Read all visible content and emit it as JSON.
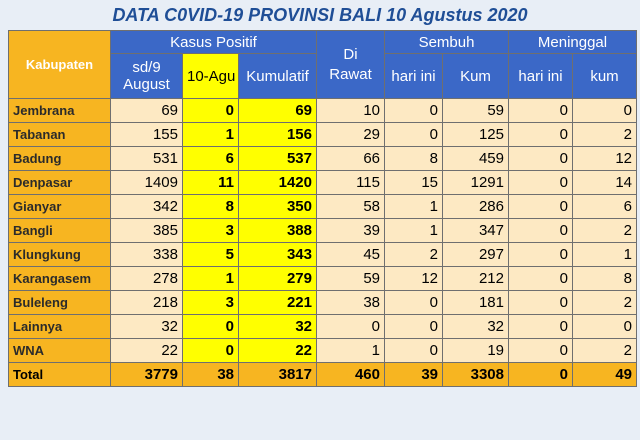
{
  "title": "DATA C0VID-19 PROVINSI BALI 10 Agustus 2020",
  "headers": {
    "kabupaten": "Kabupaten",
    "kasus_positif": "Kasus Positif",
    "di_rawat": "Di Rawat",
    "sembuh": "Sembuh",
    "meninggal": "Meninggal",
    "sd9_line1": "sd/9",
    "sd9_line2": "August",
    "agu10": "10-Agu",
    "kumulatif": "Kumulatif",
    "sembuh_hari_ini": "hari ini",
    "sembuh_kum": "Kum",
    "meninggal_hari_ini": "hari ini",
    "meninggal_kum": "kum"
  },
  "rows": [
    {
      "name": "Jembrana",
      "sd9": "69",
      "agu10": "0",
      "kumulatif": "69",
      "dirawat": "10",
      "sembuh_hari": "0",
      "sembuh_kum": "59",
      "mgl_hari": "0",
      "mgl_kum": "0"
    },
    {
      "name": "Tabanan",
      "sd9": "155",
      "agu10": "1",
      "kumulatif": "156",
      "dirawat": "29",
      "sembuh_hari": "0",
      "sembuh_kum": "125",
      "mgl_hari": "0",
      "mgl_kum": "2"
    },
    {
      "name": "Badung",
      "sd9": "531",
      "agu10": "6",
      "kumulatif": "537",
      "dirawat": "66",
      "sembuh_hari": "8",
      "sembuh_kum": "459",
      "mgl_hari": "0",
      "mgl_kum": "12"
    },
    {
      "name": "Denpasar",
      "sd9": "1409",
      "agu10": "11",
      "kumulatif": "1420",
      "dirawat": "115",
      "sembuh_hari": "15",
      "sembuh_kum": "1291",
      "mgl_hari": "0",
      "mgl_kum": "14"
    },
    {
      "name": "Gianyar",
      "sd9": "342",
      "agu10": "8",
      "kumulatif": "350",
      "dirawat": "58",
      "sembuh_hari": "1",
      "sembuh_kum": "286",
      "mgl_hari": "0",
      "mgl_kum": "6"
    },
    {
      "name": "Bangli",
      "sd9": "385",
      "agu10": "3",
      "kumulatif": "388",
      "dirawat": "39",
      "sembuh_hari": "1",
      "sembuh_kum": "347",
      "mgl_hari": "0",
      "mgl_kum": "2"
    },
    {
      "name": "Klungkung",
      "sd9": "338",
      "agu10": "5",
      "kumulatif": "343",
      "dirawat": "45",
      "sembuh_hari": "2",
      "sembuh_kum": "297",
      "mgl_hari": "0",
      "mgl_kum": "1"
    },
    {
      "name": "Karangasem",
      "sd9": "278",
      "agu10": "1",
      "kumulatif": "279",
      "dirawat": "59",
      "sembuh_hari": "12",
      "sembuh_kum": "212",
      "mgl_hari": "0",
      "mgl_kum": "8"
    },
    {
      "name": "Buleleng",
      "sd9": "218",
      "agu10": "3",
      "kumulatif": "221",
      "dirawat": "38",
      "sembuh_hari": "0",
      "sembuh_kum": "181",
      "mgl_hari": "0",
      "mgl_kum": "2"
    },
    {
      "name": "Lainnya",
      "sd9": "32",
      "agu10": "0",
      "kumulatif": "32",
      "dirawat": "0",
      "sembuh_hari": "0",
      "sembuh_kum": "32",
      "mgl_hari": "0",
      "mgl_kum": "0"
    },
    {
      "name": "WNA",
      "sd9": "22",
      "agu10": "0",
      "kumulatif": "22",
      "dirawat": "1",
      "sembuh_hari": "0",
      "sembuh_kum": "19",
      "mgl_hari": "0",
      "mgl_kum": "2"
    }
  ],
  "total": {
    "name": "Total",
    "sd9": "3779",
    "agu10": "38",
    "kumulatif": "3817",
    "dirawat": "460",
    "sembuh_hari": "39",
    "sembuh_kum": "3308",
    "mgl_hari": "0",
    "mgl_kum": "49"
  },
  "colors": {
    "header_blue": "#3b68c7",
    "orange": "#f7b521",
    "cream": "#fde9c3",
    "yellow": "#ffff00",
    "title_blue": "#1f4e96"
  }
}
